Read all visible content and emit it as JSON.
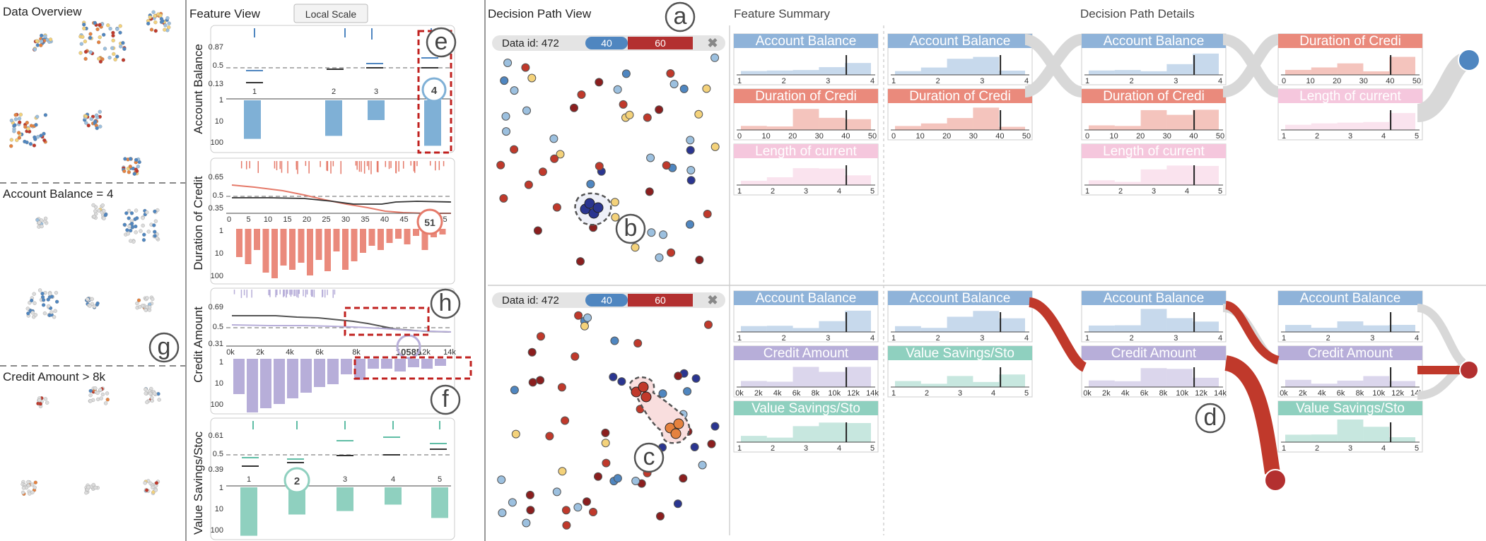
{
  "data_overview": {
    "title": "Data Overview",
    "filters": [
      "Account  Balance = 4",
      "Credit Amount > 8k"
    ]
  },
  "feature_view": {
    "title": "Feature View",
    "local_scale_label": "Local Scale",
    "features": [
      {
        "name": "Account Balance",
        "top_ticks": [
          "0.87",
          "0.5",
          "0.13"
        ],
        "x_ticks": [
          "1",
          "2",
          "3",
          "4"
        ],
        "bottom_ticks": [
          "1",
          "10",
          "100"
        ],
        "highlight_value": "4",
        "bars": [
          0.78,
          0.72,
          0.4,
          0.92
        ]
      },
      {
        "name": "Duration of Credit",
        "top_ticks": [
          "0.65",
          "0.5",
          "0.35"
        ],
        "x_ticks": [
          "0",
          "5",
          "10",
          "15",
          "20",
          "25",
          "30",
          "35",
          "40",
          "45",
          "50",
          "55"
        ],
        "bottom_ticks": [
          "1",
          "10",
          "100"
        ],
        "highlight_value": "51"
      },
      {
        "name": "Credit Amount",
        "top_ticks": [
          "0.69",
          "0.5",
          "0.31"
        ],
        "x_ticks": [
          "0k",
          "2k",
          "4k",
          "6k",
          "8k",
          "12k",
          "14k"
        ],
        "bottom_ticks": [
          "1",
          "10",
          "100"
        ],
        "highlight_value": "10585"
      },
      {
        "name": "Value Savings/Stoc",
        "top_ticks": [
          "0.61",
          "0.5",
          "0.39"
        ],
        "x_ticks": [
          "1",
          "2",
          "3",
          "4",
          "5"
        ],
        "bottom_ticks": [
          "1",
          "10",
          "100"
        ],
        "highlight_value": "2",
        "bars": [
          0.98,
          0.55,
          0.48,
          0.35,
          0.62
        ]
      }
    ]
  },
  "decision_path_view": {
    "title": "Decision Path View",
    "feature_summary_title": "Feature Summary",
    "details_title": "Decision Path Details",
    "rows": [
      {
        "data_id": "Data id: 472",
        "seg_blue": "40",
        "seg_red": "60",
        "summary_panels": [
          {
            "title": "Account Balance",
            "ticks": [
              "1",
              "2",
              "3",
              "4"
            ],
            "color": "#8fb3d9"
          },
          {
            "title": "Duration of Credi",
            "ticks": [
              "0",
              "10",
              "20",
              "30",
              "40",
              "50"
            ],
            "color": "#ea8a7c"
          },
          {
            "title": "Length of current",
            "ticks": [
              "1",
              "2",
              "3",
              "4",
              "5"
            ],
            "color": "#f5c7dd"
          }
        ],
        "paths": [
          [
            {
              "title": "Account Balance",
              "ticks": [
                "1",
                "2",
                "3",
                "4"
              ],
              "color": "#8fb3d9"
            },
            {
              "title": "Duration of Credi",
              "ticks": [
                "0",
                "10",
                "20",
                "30",
                "40",
                "50"
              ],
              "color": "#ea8a7c"
            }
          ],
          [
            {
              "title": "Account Balance",
              "ticks": [
                "1",
                "2",
                "3",
                "4"
              ],
              "color": "#8fb3d9"
            },
            {
              "title": "Duration of Credi",
              "ticks": [
                "0",
                "10",
                "20",
                "30",
                "40",
                "50"
              ],
              "color": "#ea8a7c"
            },
            {
              "title": "Length of current",
              "ticks": [
                "1",
                "2",
                "3",
                "4",
                "5"
              ],
              "color": "#f5c7dd"
            }
          ],
          [
            {
              "title": "Duration of Credi",
              "ticks": [
                "0",
                "10",
                "20",
                "30",
                "40",
                "50"
              ],
              "color": "#ea8a7c"
            },
            {
              "title": "Length of current",
              "ticks": [
                "1",
                "2",
                "3",
                "4",
                "5"
              ],
              "color": "#f5c7dd"
            }
          ]
        ]
      },
      {
        "data_id": "Data id: 472",
        "seg_blue": "40",
        "seg_red": "60",
        "summary_panels": [
          {
            "title": "Account Balance",
            "ticks": [
              "1",
              "2",
              "3",
              "4"
            ],
            "color": "#8fb3d9"
          },
          {
            "title": "Credit Amount",
            "ticks": [
              "0k",
              "2k",
              "4k",
              "6k",
              "8k",
              "10k",
              "12k",
              "14k"
            ],
            "color": "#b7aed9"
          },
          {
            "title": "Value Savings/Sto",
            "ticks": [
              "1",
              "2",
              "3",
              "4",
              "5"
            ],
            "color": "#8fd0bf"
          }
        ],
        "paths": [
          [
            {
              "title": "Account Balance",
              "ticks": [
                "1",
                "2",
                "3",
                "4"
              ],
              "color": "#8fb3d9"
            },
            {
              "title": "Value Savings/Sto",
              "ticks": [
                "1",
                "2",
                "3",
                "4",
                "5"
              ],
              "color": "#8fd0bf"
            }
          ],
          [
            {
              "title": "Account Balance",
              "ticks": [
                "1",
                "2",
                "3",
                "4"
              ],
              "color": "#8fb3d9"
            },
            {
              "title": "Credit Amount",
              "ticks": [
                "0k",
                "2k",
                "4k",
                "6k",
                "8k",
                "10k",
                "12k",
                "14k"
              ],
              "color": "#b7aed9"
            }
          ],
          [
            {
              "title": "Account Balance",
              "ticks": [
                "1",
                "2",
                "3",
                "4"
              ],
              "color": "#8fb3d9"
            },
            {
              "title": "Credit Amount",
              "ticks": [
                "0k",
                "2k",
                "4k",
                "6k",
                "8k",
                "10k",
                "12k",
                "14k"
              ],
              "color": "#b7aed9"
            },
            {
              "title": "Value Savings/Sto",
              "ticks": [
                "1",
                "2",
                "3",
                "4",
                "5"
              ],
              "color": "#8fd0bf"
            }
          ]
        ]
      }
    ]
  },
  "annotations": [
    "a",
    "b",
    "c",
    "d",
    "e",
    "f",
    "g",
    "h"
  ],
  "colors": {
    "account_balance": "#8fb3d9",
    "duration": "#ea8a7c",
    "length": "#f5c7dd",
    "credit_amount": "#b7aed9",
    "value_savings": "#8fd0bf",
    "seg_blue": "#4f86c0",
    "seg_red": "#b33030",
    "highlight": "#c0211f"
  }
}
